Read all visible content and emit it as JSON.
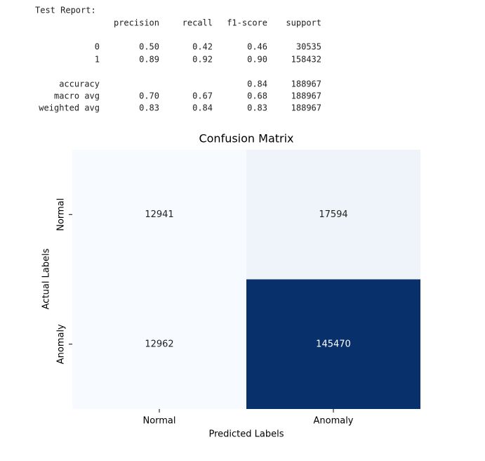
{
  "report": {
    "title": "Test Report:",
    "columns": [
      "precision",
      "recall",
      "f1-score",
      "support"
    ],
    "rows": [
      {
        "label": "0",
        "cells": [
          "0.50",
          "0.42",
          "0.46",
          "30535"
        ]
      },
      {
        "label": "1",
        "cells": [
          "0.89",
          "0.92",
          "0.90",
          "158432"
        ]
      },
      {
        "label": "accuracy",
        "cells": [
          null,
          null,
          "0.84",
          "188967"
        ]
      },
      {
        "label": "macro avg",
        "cells": [
          "0.70",
          "0.67",
          "0.68",
          "188967"
        ]
      },
      {
        "label": "weighted avg",
        "cells": [
          "0.83",
          "0.84",
          "0.83",
          "188967"
        ]
      }
    ]
  },
  "chart_data": {
    "type": "heatmap",
    "title": "Confusion Matrix",
    "x_label": "Predicted Labels",
    "y_label": "Actual Labels",
    "x_categories": [
      "Normal",
      "Anomaly"
    ],
    "y_categories": [
      "Normal",
      "Anomaly"
    ],
    "values": [
      [
        12941,
        17594
      ],
      [
        12962,
        145470
      ]
    ],
    "colors": [
      "#f7fbff",
      "#08306b"
    ]
  }
}
